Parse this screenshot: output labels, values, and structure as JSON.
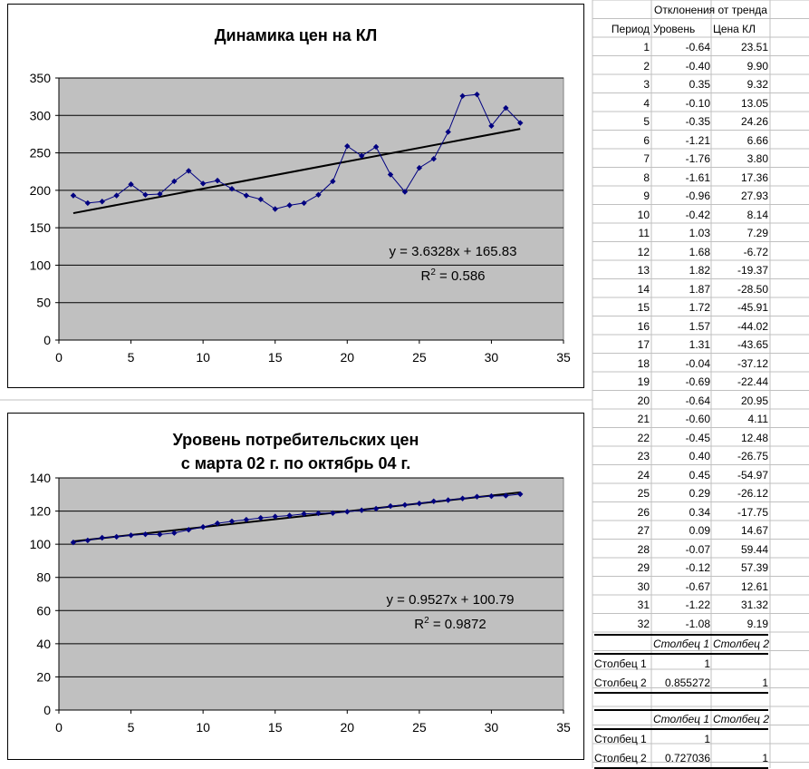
{
  "sheet": {
    "section_title": "Отклонения от тренда",
    "headers": [
      "Период",
      "Уровень",
      "Цена КЛ"
    ],
    "rows": [
      [
        "1",
        "-0.64",
        "23.51"
      ],
      [
        "2",
        "-0.40",
        "9.90"
      ],
      [
        "3",
        "0.35",
        "9.32"
      ],
      [
        "4",
        "-0.10",
        "13.05"
      ],
      [
        "5",
        "-0.35",
        "24.26"
      ],
      [
        "6",
        "-1.21",
        "6.66"
      ],
      [
        "7",
        "-1.76",
        "3.80"
      ],
      [
        "8",
        "-1.61",
        "17.36"
      ],
      [
        "9",
        "-0.96",
        "27.93"
      ],
      [
        "10",
        "-0.42",
        "8.14"
      ],
      [
        "11",
        "1.03",
        "7.29"
      ],
      [
        "12",
        "1.68",
        "-6.72"
      ],
      [
        "13",
        "1.82",
        "-19.37"
      ],
      [
        "14",
        "1.87",
        "-28.50"
      ],
      [
        "15",
        "1.72",
        "-45.91"
      ],
      [
        "16",
        "1.57",
        "-44.02"
      ],
      [
        "17",
        "1.31",
        "-43.65"
      ],
      [
        "18",
        "-0.04",
        "-37.12"
      ],
      [
        "19",
        "-0.69",
        "-22.44"
      ],
      [
        "20",
        "-0.64",
        "20.95"
      ],
      [
        "21",
        "-0.60",
        "4.11"
      ],
      [
        "22",
        "-0.45",
        "12.48"
      ],
      [
        "23",
        "0.40",
        "-26.75"
      ],
      [
        "24",
        "0.45",
        "-54.97"
      ],
      [
        "25",
        "0.29",
        "-26.12"
      ],
      [
        "26",
        "0.34",
        "-17.75"
      ],
      [
        "27",
        "0.09",
        "14.67"
      ],
      [
        "28",
        "-0.07",
        "59.44"
      ],
      [
        "29",
        "-0.12",
        "57.39"
      ],
      [
        "30",
        "-0.67",
        "12.61"
      ],
      [
        "31",
        "-1.22",
        "31.32"
      ],
      [
        "32",
        "-1.08",
        "9.19"
      ]
    ],
    "corr1": {
      "col_headers": [
        "Столбец 1",
        "Столбец 2"
      ],
      "row_labels": [
        "Столбец 1",
        "Столбец 2"
      ],
      "values": [
        [
          "1",
          ""
        ],
        [
          "0.855272",
          "1"
        ]
      ]
    },
    "corr2": {
      "col_headers": [
        "Столбец 1",
        "Столбец 2"
      ],
      "row_labels": [
        "Столбец 1",
        "Столбец 2"
      ],
      "values": [
        [
          "1",
          ""
        ],
        [
          "0.727036",
          "1"
        ]
      ]
    }
  },
  "chart_data": [
    {
      "type": "scatter",
      "title": "Динамика цен на КЛ",
      "xlim": [
        0,
        35
      ],
      "ylim": [
        0,
        350
      ],
      "xticks": [
        0,
        5,
        10,
        15,
        20,
        25,
        30,
        35
      ],
      "yticks": [
        0,
        50,
        100,
        150,
        200,
        250,
        300,
        350
      ],
      "x": [
        1,
        2,
        3,
        4,
        5,
        6,
        7,
        8,
        9,
        10,
        11,
        12,
        13,
        14,
        15,
        16,
        17,
        18,
        19,
        20,
        21,
        22,
        23,
        24,
        25,
        26,
        27,
        28,
        29,
        30,
        31,
        32
      ],
      "y": [
        193,
        183,
        185,
        193,
        208,
        194,
        195,
        212,
        226,
        209,
        213,
        202,
        193,
        188,
        175,
        180,
        183,
        194,
        212,
        259,
        246,
        258,
        221,
        198,
        230,
        242,
        278,
        326,
        328,
        286,
        310,
        290
      ],
      "series_color": "#000080",
      "trendline": {
        "slope": 3.6328,
        "intercept": 165.83,
        "equation": "y = 3.6328x + 165.83",
        "r2_prefix": "R",
        "r2_sup": "2",
        "r2_value": " = 0.586"
      },
      "grid": true
    },
    {
      "type": "scatter",
      "title": "Уровень потребительских цен",
      "subtitle": "с марта 02 г. по октябрь 04 г.",
      "xlim": [
        0,
        35
      ],
      "ylim": [
        0,
        140
      ],
      "xticks": [
        0,
        5,
        10,
        15,
        20,
        25,
        30,
        35
      ],
      "yticks": [
        0,
        20,
        40,
        60,
        80,
        100,
        120,
        140
      ],
      "x": [
        1,
        2,
        3,
        4,
        5,
        6,
        7,
        8,
        9,
        10,
        11,
        12,
        13,
        14,
        15,
        16,
        17,
        18,
        19,
        20,
        21,
        22,
        23,
        24,
        25,
        26,
        27,
        28,
        29,
        30,
        31,
        32
      ],
      "y": [
        101.1,
        102.3,
        103.9,
        104.5,
        105.4,
        106.0,
        105.9,
        106.8,
        108.7,
        110.4,
        112.6,
        113.8,
        114.8,
        115.9,
        116.7,
        117.3,
        118.3,
        118.7,
        118.8,
        119.6,
        120.5,
        121.4,
        123.0,
        123.7,
        124.6,
        125.9,
        126.6,
        127.6,
        128.7,
        129.0,
        129.3,
        130.2
      ],
      "series_color": "#000080",
      "trendline": {
        "slope": 0.9527,
        "intercept": 100.79,
        "equation": "y = 0.9527x + 100.79",
        "r2_prefix": "R",
        "r2_sup": "2",
        "r2_value": " = 0.9872"
      },
      "grid": true
    }
  ]
}
